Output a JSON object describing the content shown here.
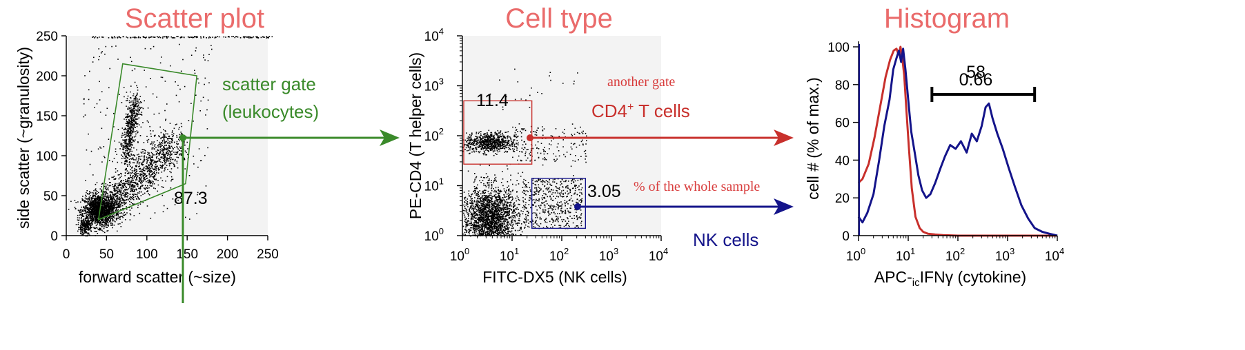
{
  "colors": {
    "title": "#ea6b6b",
    "gate_green": "#3a8a2a",
    "gate_red": "#c8302c",
    "gate_blue": "#14148a",
    "annot_red": "#d83c3c",
    "plot_bg": "#f3f3f3",
    "axis": "#000000"
  },
  "panels": {
    "scatter": {
      "title": "Scatter plot"
    },
    "celltype": {
      "title": "Cell type"
    },
    "histogram": {
      "title": "Histogram"
    }
  },
  "annotations": {
    "scatter_gate_line1": "scatter gate",
    "scatter_gate_line2": "(leukocytes)",
    "another_gate": "another gate",
    "cd4_label_main": "CD4",
    "cd4_label_sup": "+",
    "cd4_label_rest": " T cells",
    "percent_note": "% of the whole sample",
    "nk_cells": "NK cells"
  },
  "chart_data": [
    {
      "type": "scatter",
      "title": "Scatter plot",
      "xlabel": "forward scatter (~size)",
      "ylabel": "side scatter (~granulosity)",
      "xlim": [
        0,
        250
      ],
      "ylim": [
        0,
        250
      ],
      "xticks": [
        "0",
        "50",
        "100",
        "150",
        "200",
        "250"
      ],
      "yticks": [
        "0",
        "50",
        "100",
        "150",
        "200",
        "250"
      ],
      "gate": {
        "name": "scatter gate (leukocytes)",
        "polygon": [
          [
            40,
            20
          ],
          [
            70,
            215
          ],
          [
            162,
            200
          ],
          [
            148,
            65
          ],
          [
            40,
            20
          ]
        ],
        "percent": "87.3"
      },
      "population": "dense cluster near (40, 30) with diagonal tail to (140, 140)"
    },
    {
      "type": "scatter",
      "title": "Cell type",
      "xlabel": "FITC-DX5 (NK cells)",
      "ylabel": "PE-CD4 (T helper cells)",
      "xscale": "log",
      "yscale": "log",
      "xlim": [
        1,
        10000
      ],
      "ylim": [
        1,
        10000
      ],
      "xtick_base": "10",
      "ytick_base": "10",
      "xtick_exponents": [
        "0",
        "1",
        "2",
        "3",
        "4"
      ],
      "ytick_exponents": [
        "0",
        "1",
        "2",
        "3",
        "4"
      ],
      "gates": [
        {
          "name": "CD4+ T cells",
          "x": [
            1,
            25
          ],
          "y": [
            27,
            500
          ],
          "percent": "11.4"
        },
        {
          "name": "NK cells",
          "x": [
            25,
            300
          ],
          "y": [
            1.4,
            14
          ],
          "percent": "3.05"
        }
      ]
    },
    {
      "type": "line",
      "title": "Histogram",
      "xlabel_prefix": "APC-",
      "xlabel_sub": "ic",
      "xlabel_rest": "IFNγ (cytokine)",
      "ylabel": "cell # (% of max.)",
      "xscale": "log",
      "xlim": [
        1,
        10000
      ],
      "ylim": [
        0,
        100
      ],
      "xtick_base": "10",
      "xtick_exponents": [
        "0",
        "1",
        "2",
        "3",
        "4"
      ],
      "yticks": [
        "0",
        "20",
        "40",
        "60",
        "80",
        "100"
      ],
      "marker_range": [
        30,
        3500
      ],
      "marker_labels": [
        "58",
        "0.66"
      ],
      "series": [
        {
          "color": "#c8302c",
          "x": [
            1.0,
            1.2,
            1.6,
            2.1,
            2.8,
            3.5,
            4.3,
            5.1,
            5.8,
            6.4,
            7.0,
            7.6,
            8.3,
            9.1,
            10.3,
            11.8,
            14,
            17,
            20,
            25,
            35,
            50,
            100,
            1000,
            10000
          ],
          "y": [
            28,
            30,
            38,
            52,
            70,
            84,
            93,
            98,
            99,
            96,
            100,
            94,
            85,
            68,
            47,
            25,
            10,
            4,
            2,
            1,
            0.6,
            0.3,
            0,
            0,
            0
          ]
        },
        {
          "color": "#14148a",
          "x": [
            1.0,
            1.2,
            1.5,
            2.0,
            2.6,
            3.3,
            4.2,
            5.0,
            5.8,
            6.5,
            7.2,
            7.9,
            8.8,
            10,
            11.5,
            13.5,
            16,
            19,
            23,
            28,
            35,
            45,
            55,
            70,
            90,
            115,
            150,
            190,
            240,
            300,
            360,
            420,
            500,
            620,
            800,
            1050,
            1400,
            1900,
            2600,
            3500,
            5000,
            7000,
            10000
          ],
          "y": [
            10,
            7,
            12,
            22,
            40,
            58,
            72,
            88,
            94,
            98,
            92,
            99,
            88,
            72,
            55,
            44,
            32,
            24,
            20,
            22,
            28,
            36,
            42,
            48,
            46,
            50,
            44,
            54,
            50,
            58,
            68,
            70,
            62,
            54,
            46,
            36,
            26,
            16,
            9,
            4,
            2,
            1,
            0
          ]
        }
      ]
    }
  ]
}
